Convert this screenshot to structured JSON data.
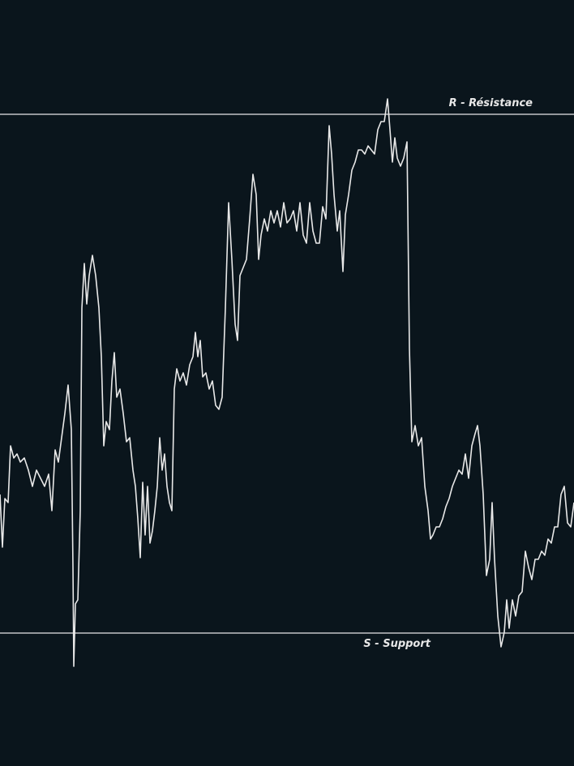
{
  "chart_data": {
    "type": "line",
    "color": "#e8e8e8",
    "background": "#0a151c",
    "xlim": [
      0,
      708
    ],
    "ylim": [
      -164,
      781
    ],
    "levels": [
      {
        "text": "R - Résistance",
        "value": 640
      },
      {
        "text": "S - Support",
        "value": 0
      }
    ],
    "x": [
      0,
      3,
      6,
      10,
      13,
      17,
      21,
      25,
      30,
      35,
      40,
      45,
      50,
      55,
      60,
      64,
      68,
      72,
      76,
      80,
      84,
      88,
      90,
      91,
      93,
      96,
      99,
      101,
      104,
      107,
      110,
      114,
      118,
      122,
      125,
      128,
      131,
      135,
      138,
      141,
      144,
      148,
      152,
      156,
      160,
      164,
      167,
      170,
      173,
      176,
      179,
      182,
      185,
      188,
      191,
      194,
      197,
      200,
      203,
      206,
      209,
      212,
      215,
      218,
      222,
      226,
      230,
      234,
      238,
      241,
      244,
      247,
      250,
      254,
      258,
      262,
      266,
      270,
      274,
      278,
      282,
      286,
      290,
      293,
      296,
      300,
      304,
      308,
      312,
      316,
      319,
      322,
      326,
      330,
      334,
      338,
      342,
      346,
      350,
      354,
      358,
      362,
      366,
      370,
      374,
      378,
      382,
      386,
      390,
      394,
      398,
      402,
      406,
      409,
      412,
      416,
      419,
      423,
      426,
      430,
      434,
      438,
      442,
      446,
      450,
      454,
      458,
      462,
      466,
      470,
      474,
      478,
      481,
      484,
      487,
      490,
      494,
      498,
      502,
      505,
      508,
      512,
      516,
      520,
      524,
      528,
      531,
      534,
      538,
      542,
      546,
      550,
      554,
      558,
      562,
      566,
      570,
      574,
      578,
      582,
      586,
      589,
      592,
      596,
      600,
      604,
      607,
      610,
      614,
      618,
      622,
      625,
      628,
      632,
      636,
      640,
      644,
      648,
      652,
      656,
      660,
      664,
      668,
      672,
      676,
      680,
      684,
      688,
      692,
      696,
      700,
      704,
      708
    ],
    "values": [
      171,
      106,
      166,
      161,
      231,
      216,
      221,
      211,
      216,
      201,
      181,
      201,
      191,
      181,
      196,
      151,
      226,
      211,
      241,
      271,
      306,
      251,
      81,
      -41,
      36,
      41,
      151,
      401,
      456,
      406,
      441,
      466,
      441,
      401,
      341,
      231,
      261,
      251,
      311,
      346,
      291,
      301,
      271,
      236,
      241,
      201,
      181,
      141,
      93,
      186,
      121,
      181,
      111,
      126,
      151,
      181,
      241,
      201,
      221,
      181,
      161,
      151,
      301,
      326,
      311,
      321,
      306,
      331,
      341,
      371,
      341,
      361,
      316,
      321,
      301,
      311,
      281,
      276,
      291,
      401,
      531,
      461,
      381,
      361,
      441,
      451,
      461,
      511,
      566,
      541,
      461,
      491,
      511,
      496,
      521,
      506,
      521,
      501,
      531,
      506,
      511,
      521,
      496,
      531,
      491,
      481,
      531,
      496,
      481,
      481,
      526,
      511,
      626,
      591,
      541,
      496,
      521,
      446,
      516,
      541,
      571,
      581,
      596,
      596,
      591,
      601,
      596,
      591,
      621,
      631,
      631,
      659,
      621,
      581,
      611,
      586,
      576,
      586,
      606,
      351,
      236,
      256,
      231,
      241,
      181,
      151,
      116,
      121,
      131,
      131,
      141,
      156,
      166,
      181,
      191,
      201,
      196,
      221,
      191,
      231,
      246,
      256,
      231,
      171,
      71,
      91,
      161,
      91,
      21,
      -17,
      1,
      41,
      6,
      41,
      21,
      46,
      51,
      101,
      81,
      66,
      91,
      91,
      101,
      96,
      116,
      111,
      131,
      131,
      171,
      181,
      136,
      131,
      161
    ]
  }
}
